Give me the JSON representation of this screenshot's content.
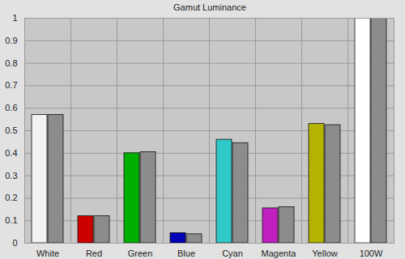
{
  "chart_data": {
    "type": "bar",
    "title": "Gamut Luminance",
    "categories": [
      "White",
      "Red",
      "Green",
      "Blue",
      "Cyan",
      "Magenta",
      "Yellow",
      "100W"
    ],
    "series": [
      {
        "colors": [
          "#f2f2f2",
          "#cc0000",
          "#00b000",
          "#0000b4",
          "#30c8c8",
          "#c020c0",
          "#b4b400",
          "#ffffff"
        ],
        "values": [
          0.57,
          0.12,
          0.4,
          0.045,
          0.46,
          0.155,
          0.53,
          1.0
        ]
      },
      {
        "color": "#8c8c8c",
        "values": [
          0.57,
          0.12,
          0.405,
          0.04,
          0.445,
          0.16,
          0.525,
          1.0
        ]
      }
    ],
    "ylim": [
      0,
      1
    ],
    "yticks": [
      0,
      0.1,
      0.2,
      0.3,
      0.4,
      0.5,
      0.6,
      0.7,
      0.8,
      0.9,
      1
    ],
    "grid": true
  }
}
